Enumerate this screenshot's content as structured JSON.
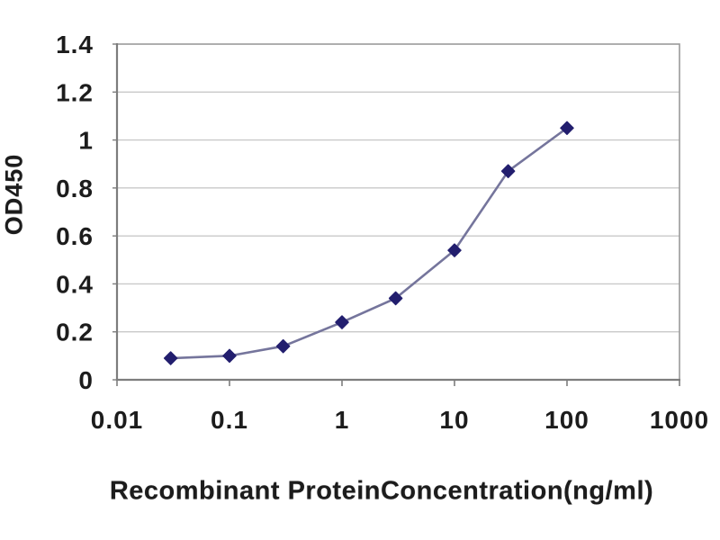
{
  "figure": {
    "background_color": "#ffffff",
    "text_color": "#1c1c1c"
  },
  "chart_data": {
    "type": "line",
    "title": "",
    "xlabel": "Recombinant ProteinConcentration(ng/ml)",
    "ylabel": "OD450",
    "x_scale": "log",
    "y_scale": "linear",
    "xlim": [
      0.01,
      1000
    ],
    "ylim": [
      0,
      1.4
    ],
    "x": [
      0.03,
      0.1,
      0.3,
      1,
      3,
      10,
      30,
      100
    ],
    "y": [
      0.09,
      0.1,
      0.14,
      0.24,
      0.34,
      0.54,
      0.87,
      1.05
    ],
    "x_ticks": [
      {
        "value": 0.01,
        "label": "0.01"
      },
      {
        "value": 0.1,
        "label": "0.1"
      },
      {
        "value": 1,
        "label": "1"
      },
      {
        "value": 10,
        "label": "10"
      },
      {
        "value": 100,
        "label": "100"
      },
      {
        "value": 1000,
        "label": "1000"
      }
    ],
    "y_ticks": [
      {
        "value": 0,
        "label": "0"
      },
      {
        "value": 0.2,
        "label": "0.2"
      },
      {
        "value": 0.4,
        "label": "0.4"
      },
      {
        "value": 0.6,
        "label": "0.6"
      },
      {
        "value": 0.8,
        "label": "0.8"
      },
      {
        "value": 1,
        "label": "1"
      },
      {
        "value": 1.2,
        "label": "1.2"
      },
      {
        "value": 1.4,
        "label": "1.4"
      }
    ],
    "grid": "horizontal-only",
    "legend": "none",
    "marker": "diamond",
    "marker_color": "#221e6e",
    "line_color": "#75759c",
    "gridline_color": "#c9c9c9",
    "axis_line_color": "#7d7d7d",
    "border_color": "#9a9a9a"
  }
}
